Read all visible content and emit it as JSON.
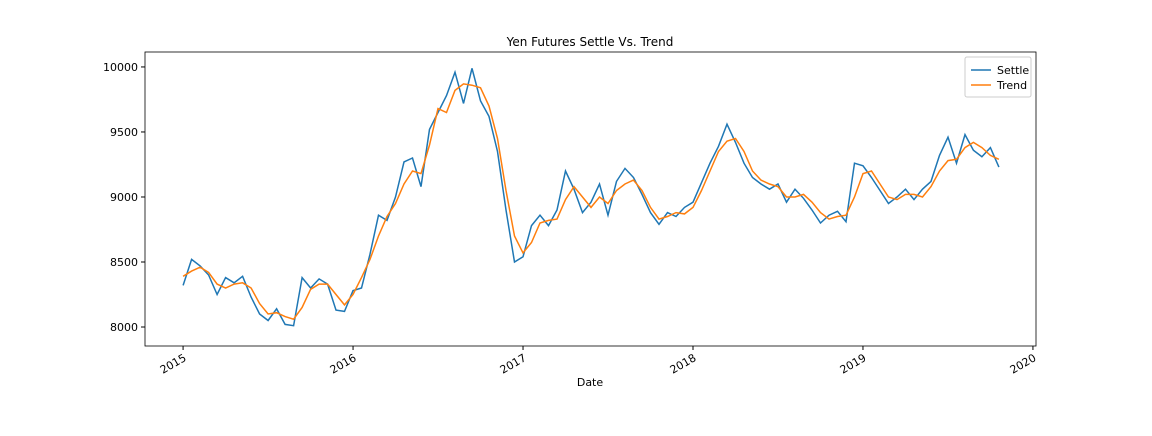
{
  "chart_data": {
    "type": "line",
    "title": "Yen Futures Settle Vs. Trend",
    "x_label": "Date",
    "x": [
      2015,
      2015.05,
      2015.1,
      2015.15,
      2015.2,
      2015.25,
      2015.3,
      2015.35,
      2015.4,
      2015.45,
      2015.5,
      2015.55,
      2015.6,
      2015.65,
      2015.7,
      2015.75,
      2015.8,
      2015.85,
      2015.9,
      2015.95,
      2016,
      2016.05,
      2016.1,
      2016.15,
      2016.2,
      2016.25,
      2016.3,
      2016.35,
      2016.4,
      2016.45,
      2016.5,
      2016.55,
      2016.6,
      2016.65,
      2016.7,
      2016.75,
      2016.8,
      2016.85,
      2016.9,
      2016.95,
      2017,
      2017.05,
      2017.1,
      2017.15,
      2017.2,
      2017.25,
      2017.3,
      2017.35,
      2017.4,
      2017.45,
      2017.5,
      2017.55,
      2017.6,
      2017.65,
      2017.7,
      2017.75,
      2017.8,
      2017.85,
      2017.9,
      2017.95,
      2018,
      2018.05,
      2018.1,
      2018.15,
      2018.2,
      2018.25,
      2018.3,
      2018.35,
      2018.4,
      2018.45,
      2018.5,
      2018.55,
      2018.6,
      2018.65,
      2018.7,
      2018.75,
      2018.8,
      2018.85,
      2018.9,
      2018.95,
      2019,
      2019.05,
      2019.1,
      2019.15,
      2019.2,
      2019.25,
      2019.3,
      2019.35,
      2019.4,
      2019.45,
      2019.5,
      2019.55,
      2019.6,
      2019.65,
      2019.7,
      2019.75,
      2019.8
    ],
    "series": [
      {
        "name": "Settle",
        "color": "#1f77b4",
        "values": [
          8320,
          8520,
          8470,
          8400,
          8250,
          8380,
          8340,
          8390,
          8230,
          8100,
          8050,
          8140,
          8020,
          8010,
          8380,
          8300,
          8370,
          8330,
          8130,
          8120,
          8280,
          8300,
          8560,
          8860,
          8820,
          9000,
          9270,
          9300,
          9080,
          9520,
          9650,
          9780,
          9960,
          9720,
          9990,
          9740,
          9620,
          9350,
          8900,
          8500,
          8540,
          8780,
          8860,
          8780,
          8900,
          9200,
          9060,
          8880,
          8960,
          9100,
          8860,
          9120,
          9220,
          9150,
          9020,
          8880,
          8790,
          8880,
          8850,
          8920,
          8960,
          9110,
          9260,
          9390,
          9560,
          9420,
          9260,
          9150,
          9100,
          9060,
          9100,
          8960,
          9060,
          8990,
          8900,
          8800,
          8860,
          8890,
          8810,
          9260,
          9240,
          9150,
          9050,
          8950,
          9000,
          9060,
          8980,
          9060,
          9120,
          9320,
          9460,
          9260,
          9480,
          9360,
          9310,
          9380,
          9230
        ]
      },
      {
        "name": "Trend",
        "color": "#ff7f0e",
        "values": [
          8390,
          8430,
          8460,
          8420,
          8330,
          8300,
          8330,
          8340,
          8300,
          8180,
          8100,
          8110,
          8080,
          8060,
          8150,
          8290,
          8330,
          8330,
          8250,
          8170,
          8250,
          8380,
          8520,
          8700,
          8850,
          8950,
          9100,
          9200,
          9180,
          9400,
          9680,
          9650,
          9820,
          9870,
          9860,
          9840,
          9700,
          9450,
          9050,
          8700,
          8570,
          8650,
          8800,
          8820,
          8830,
          8980,
          9080,
          9000,
          8920,
          9000,
          8950,
          9050,
          9100,
          9130,
          9050,
          8920,
          8830,
          8850,
          8880,
          8870,
          8920,
          9050,
          9200,
          9350,
          9430,
          9450,
          9350,
          9200,
          9130,
          9100,
          9080,
          9000,
          9000,
          9020,
          8960,
          8880,
          8830,
          8850,
          8860,
          9000,
          9180,
          9200,
          9100,
          9000,
          8980,
          9020,
          9020,
          9000,
          9080,
          9200,
          9280,
          9290,
          9380,
          9420,
          9380,
          9320,
          9290
        ]
      }
    ],
    "xlim": [
      2014.776,
      2020.018
    ],
    "xticks": [
      2015,
      2016,
      2017,
      2018,
      2019,
      2020
    ],
    "ylim": [
      7854,
      10115
    ],
    "yticks": [
      8000,
      8500,
      9000,
      9500,
      10000
    ],
    "legend": "upper right"
  }
}
